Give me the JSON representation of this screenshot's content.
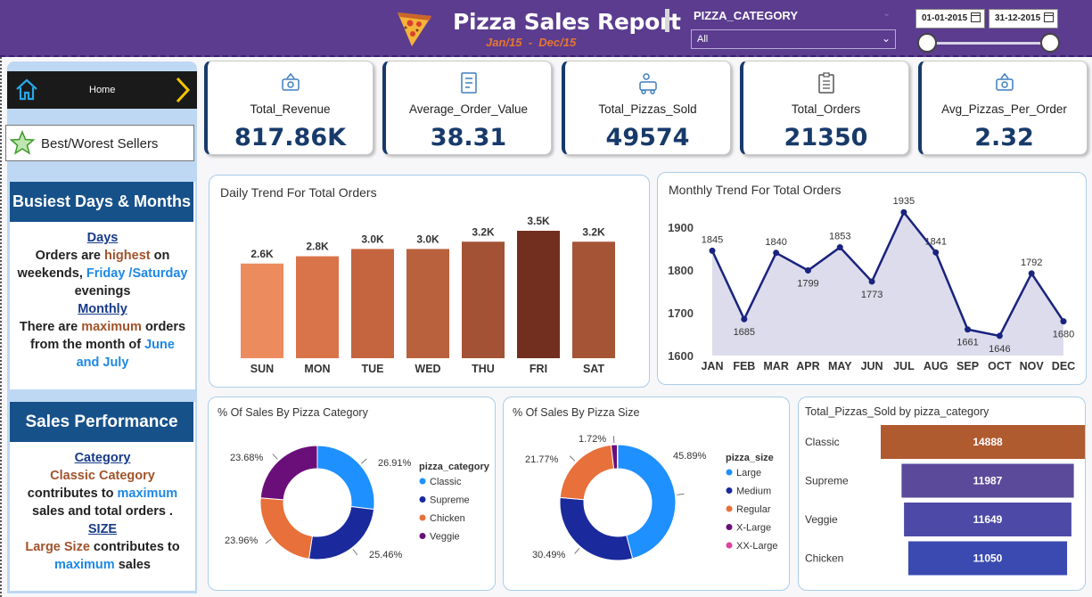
{
  "header": {
    "title": "Pizza Sales Report",
    "subtitle": "Jan/15  -  Dec/15",
    "filter_label": "PIZZA_CATEGORY",
    "filter_value": "All",
    "date_start": "01-01-2015",
    "date_end": "31-12-2015"
  },
  "sidebar": {
    "home_label": "Home",
    "best_label": "Best/Worest Sellers",
    "busiest": {
      "title": "Busiest Days & Months",
      "days_heading": "Days",
      "days_line1_a": "Orders are ",
      "days_line1_b": "highest",
      "days_line1_c": " on",
      "days_line2_a": "weekends, ",
      "days_line2_b": "Friday /Saturday",
      "days_line3": "evenings",
      "monthly_heading": "Monthly",
      "monthly_line1_a": "There are ",
      "monthly_line1_b": "maximum",
      "monthly_line1_c": " orders",
      "monthly_line2_a": "from the month of ",
      "monthly_line2_b": "June",
      "monthly_line3": "and July"
    },
    "sales": {
      "title": "Sales Performance",
      "category_heading": "Category",
      "cat_line1": "Classic Category",
      "cat_line2_a": "contributes to ",
      "cat_line2_b": "maximum",
      "cat_line3": "sales and total orders .",
      "size_heading": "SIZE",
      "size_line1_a": "Large Size",
      "size_line1_b": " contributes to",
      "size_line2_a": "maximum",
      "size_line2_b": " sales"
    }
  },
  "kpis": [
    {
      "label": "Total_Revenue",
      "value": "817.86K"
    },
    {
      "label": "Average_Order_Value",
      "value": "38.31"
    },
    {
      "label": "Total_Pizzas_Sold",
      "value": "49574"
    },
    {
      "label": "Total_Orders",
      "value": "21350"
    },
    {
      "label": "Avg_Pizzas_Per_Order",
      "value": "2.32"
    }
  ],
  "chart_data": [
    {
      "type": "bar",
      "title": "Daily Trend For Total Orders",
      "categories": [
        "SUN",
        "MON",
        "TUE",
        "WED",
        "THU",
        "FRI",
        "SAT"
      ],
      "values": [
        2600,
        2800,
        3000,
        3000,
        3200,
        3500,
        3200
      ],
      "data_labels": [
        "2.6K",
        "2.8K",
        "3.0K",
        "3.0K",
        "3.2K",
        "3.5K",
        "3.2K"
      ],
      "colors": [
        "#ec8b5e",
        "#d9744a",
        "#c4653f",
        "#b9603c",
        "#a35235",
        "#722f1f",
        "#a55536"
      ],
      "ylim": [
        0,
        3500
      ]
    },
    {
      "type": "area",
      "title": "Monthly Trend For Total Orders",
      "categories": [
        "JAN",
        "FEB",
        "MAR",
        "APR",
        "MAY",
        "JUN",
        "JUL",
        "AUG",
        "SEP",
        "OCT",
        "NOV",
        "DEC"
      ],
      "values": [
        1845,
        1685,
        1840,
        1799,
        1853,
        1773,
        1935,
        1841,
        1661,
        1646,
        1792,
        1680
      ],
      "yticks": [
        1600,
        1700,
        1800,
        1900
      ],
      "ylim": [
        1600,
        1950
      ],
      "line_color": "#1a237e",
      "fill_color": "#dcdcec"
    },
    {
      "type": "pie",
      "title": "% Of Sales By Pizza Category",
      "legend_title": "pizza_category",
      "labels": [
        "Classic",
        "Supreme",
        "Chicken",
        "Veggie"
      ],
      "values": [
        26.91,
        25.46,
        23.96,
        23.68
      ],
      "value_labels": [
        "26.91%",
        "25.46%",
        "23.96%",
        "23.68%"
      ],
      "colors": [
        "#1e90ff",
        "#1a2a9c",
        "#e8703a",
        "#6a0f7a"
      ]
    },
    {
      "type": "pie",
      "title": "% Of Sales By Pizza Size",
      "legend_title": "pizza_size",
      "labels": [
        "Large",
        "Medium",
        "Regular",
        "X-Large",
        "XX-Large"
      ],
      "values": [
        45.89,
        30.49,
        21.77,
        1.72,
        0.13
      ],
      "value_labels": [
        "45.89%",
        "30.49%",
        "21.77%",
        "1.72%",
        ""
      ],
      "colors": [
        "#1e90ff",
        "#1a2a9c",
        "#e8703a",
        "#6a0f7a",
        "#e040a0"
      ]
    },
    {
      "type": "bar",
      "orientation": "horizontal",
      "title": "Total_Pizzas_Sold by pizza_category",
      "categories": [
        "Classic",
        "Supreme",
        "Veggie",
        "Chicken"
      ],
      "values": [
        14888,
        11987,
        11649,
        11050
      ],
      "colors": [
        "#b05a2f",
        "#5b4a9a",
        "#4c4aa6",
        "#3a4ab0"
      ]
    }
  ]
}
